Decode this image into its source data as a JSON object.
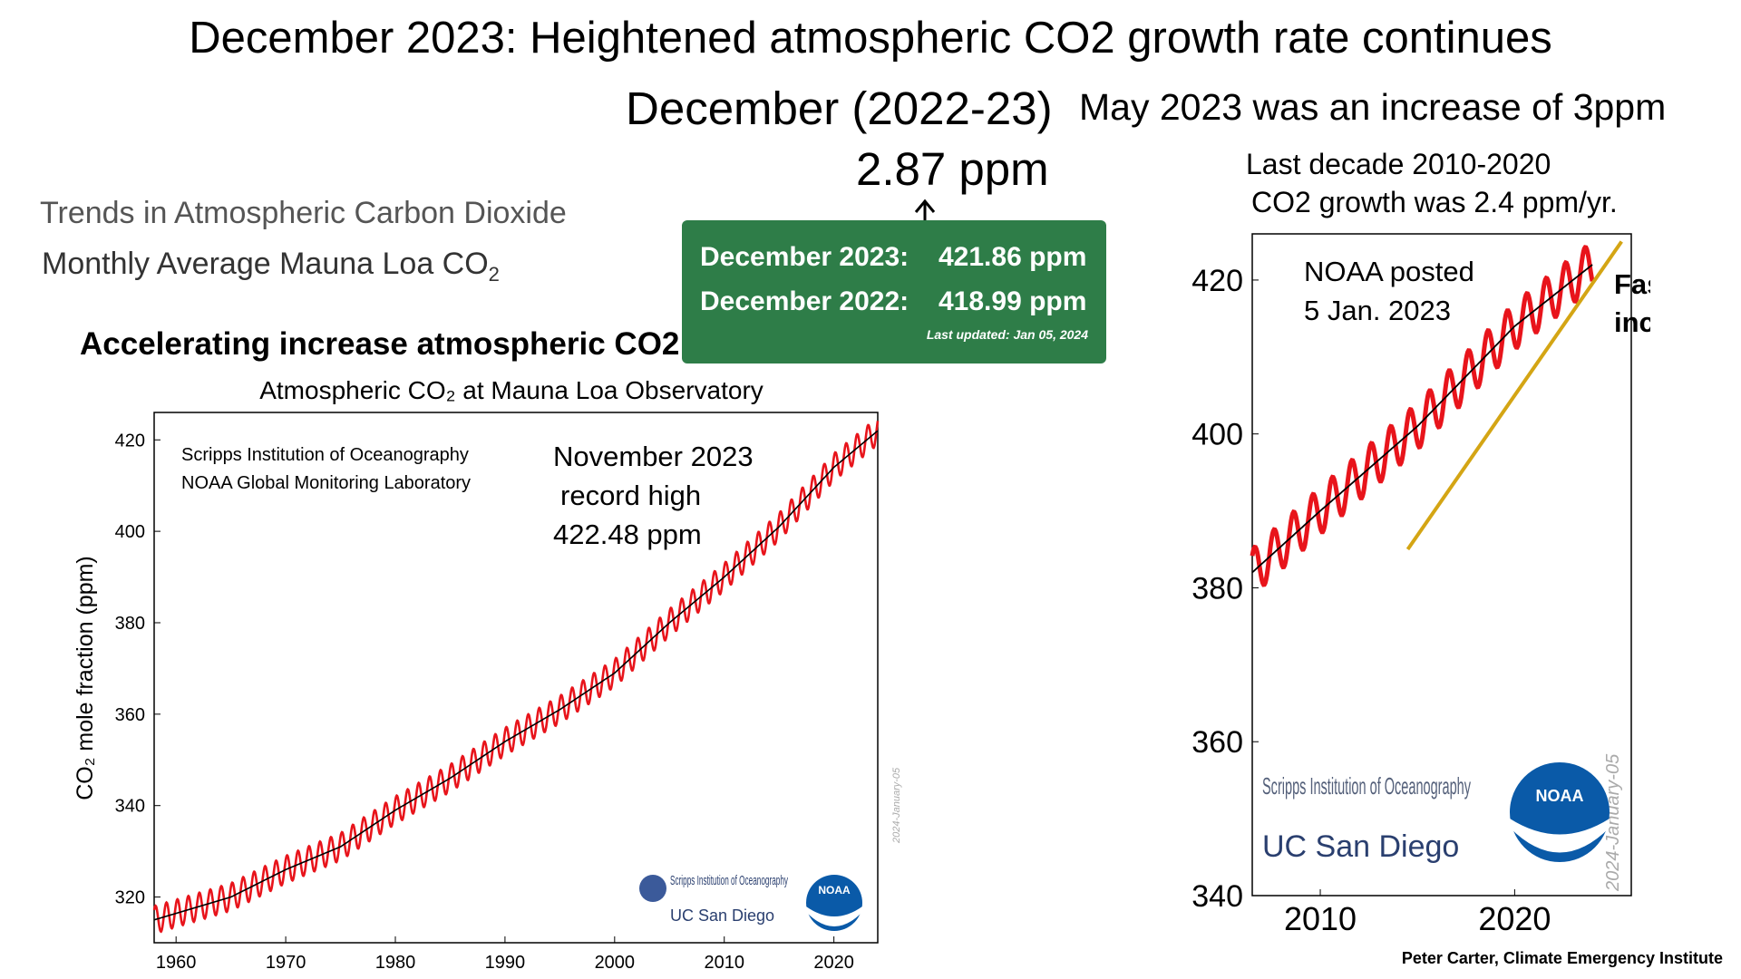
{
  "header": {
    "title": "December 2023: Heightened atmospheric CO2 growth rate continues",
    "december_label": "December (2022-23)",
    "may_note": "May 2023 was an increase of 3ppm",
    "increase_value": "2.87 ppm"
  },
  "trends": {
    "heading": "Trends in Atmospheric Carbon Dioxide",
    "subheading": "Monthly Average Mauna Loa CO",
    "subheading_sub": "2"
  },
  "accelerating_label": "Accelerating increase atmospheric CO2",
  "green_box": {
    "row1_label": "December 2023:",
    "row1_value": "421.86 ppm",
    "row2_label": "December 2022:",
    "row2_value": "418.99 ppm",
    "updated": "Last updated: Jan 05, 2024"
  },
  "right_notes": {
    "line1": "Last decade  2010-2020",
    "line2": "CO2 growth was 2.4 ppm/yr."
  },
  "credit": "Peter Carter,  Climate Emergency Institute",
  "colors": {
    "monthly": "#e8141b",
    "trend": "#000000",
    "green_box": "#2e7d48",
    "faster_line": "#d4a514"
  },
  "chart_data": [
    {
      "type": "line",
      "title": "Atmospheric CO₂ at Mauna Loa Observatory",
      "ylabel": "CO₂ mole fraction (ppm)",
      "xlabel": "",
      "xlim": [
        1958,
        2024
      ],
      "ylim": [
        310,
        426
      ],
      "x_ticks": [
        "1960",
        "1970",
        "1980",
        "1990",
        "2000",
        "2010",
        "2020"
      ],
      "y_ticks": [
        "320",
        "340",
        "360",
        "380",
        "400",
        "420"
      ],
      "inset_lines": [
        "Scripps Institution of Oceanography",
        "NOAA Global Monitoring Laboratory"
      ],
      "annotation": [
        "November 2023",
        "record high",
        "422.48 ppm"
      ],
      "date_stamp": "2024-January-05",
      "series": [
        {
          "x": [
            1958,
            1965,
            1970,
            1975,
            1980,
            1985,
            1990,
            1995,
            2000,
            2005,
            2010,
            2015,
            2020,
            2024
          ],
          "values": [
            315,
            320,
            326,
            331,
            339,
            346,
            354,
            361,
            369,
            380,
            390,
            401,
            414,
            422
          ]
        }
      ],
      "seasonal_amplitude_ppm": 6,
      "grid": false,
      "logos": [
        "Scripps Institution of Oceanography",
        "UC San Diego",
        "NOAA"
      ]
    },
    {
      "type": "line",
      "title": "",
      "xlim": [
        2006.5,
        2026
      ],
      "ylim": [
        340,
        426
      ],
      "x_ticks": [
        "2010",
        "2020"
      ],
      "y_ticks": [
        "340",
        "360",
        "380",
        "400",
        "420"
      ],
      "annotation": [
        "NOAA posted",
        "5 Jan. 2023"
      ],
      "faster_label": [
        "Faster",
        "increase"
      ],
      "date_stamp": "2024-January-05",
      "series": [
        {
          "x": [
            2006.5,
            2010,
            2015,
            2020,
            2024
          ],
          "values": [
            382,
            390,
            401,
            414,
            422
          ]
        }
      ],
      "seasonal_amplitude_ppm": 6,
      "trend_line": {
        "x": [
          2014.5,
          2025.5
        ],
        "values": [
          385,
          425
        ]
      },
      "grid": false,
      "logos": [
        "Scripps Institution of Oceanography",
        "UC San Diego",
        "NOAA"
      ]
    }
  ]
}
